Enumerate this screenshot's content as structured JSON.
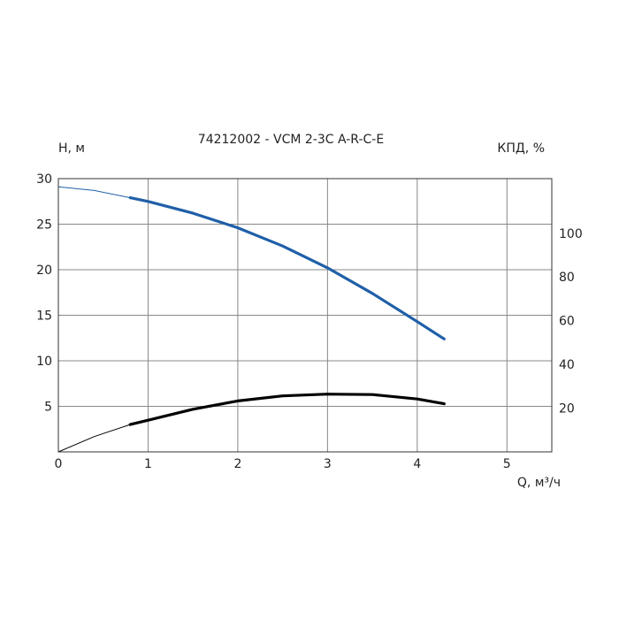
{
  "chart_data": {
    "type": "line",
    "title": "74212002 - VCM 2-3C A-R-C-E",
    "xlabel": "Q, м³/ч",
    "ylabel": "H, м",
    "y2label": "КПД, %",
    "xlim": [
      0,
      5.5
    ],
    "ylim": [
      0,
      30
    ],
    "y2lim": [
      0,
      125
    ],
    "x_ticks": [
      "0",
      "1",
      "2",
      "3",
      "4",
      "5"
    ],
    "y_ticks": [
      "5",
      "10",
      "15",
      "20",
      "25",
      "30"
    ],
    "y2_ticks": [
      "20",
      "40",
      "60",
      "80",
      "100"
    ],
    "grid": true,
    "series": [
      {
        "axis": "left",
        "color": "#1f5fa8",
        "thin_x": [
          0,
          0.4,
          0.8
        ],
        "thin_y": [
          29.1,
          28.7,
          27.9
        ],
        "x": [
          0.8,
          1.0,
          1.5,
          2.0,
          2.5,
          3.0,
          3.5,
          4.0,
          4.3
        ],
        "y": [
          27.9,
          27.5,
          26.2,
          24.6,
          22.6,
          20.2,
          17.4,
          14.3,
          12.4
        ]
      },
      {
        "axis": "right",
        "color": "#000000",
        "thin_x": [
          0,
          0.4,
          0.8
        ],
        "thin_y": [
          0,
          7,
          12.5
        ],
        "x": [
          0.8,
          1.0,
          1.5,
          2.0,
          2.5,
          3.0,
          3.5,
          4.0,
          4.3
        ],
        "y": [
          12.5,
          14.5,
          19.5,
          23.3,
          25.6,
          26.4,
          26.2,
          24.2,
          22
        ]
      }
    ]
  }
}
